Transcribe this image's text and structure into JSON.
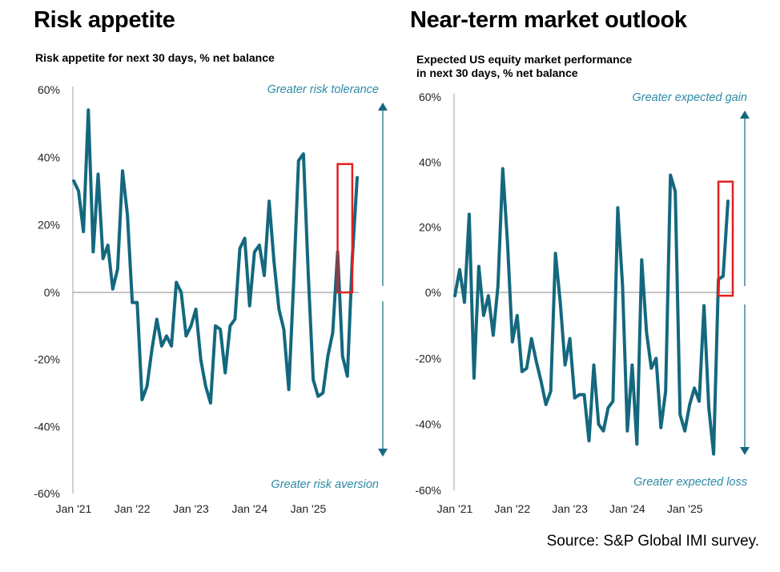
{
  "colors": {
    "series": "#14687e",
    "highlight": "#e02020",
    "axis": "#a0a0a0",
    "annotation": "#2d8aa6"
  },
  "left": {
    "title": "Risk appetite",
    "subtitle": "Risk appetite for next 30 days, % net balance"
  },
  "right": {
    "title": "Near-term market outlook",
    "subtitle_line1": "Expected US equity market performance",
    "subtitle_line2": "in next 30 days, % net balance"
  },
  "source": "Source: S&P Global IMI survey.",
  "chart_data": [
    {
      "type": "line",
      "title": "Risk appetite",
      "subtitle": "Risk appetite for next 30 days, % net balance",
      "ylim": [
        -60,
        60
      ],
      "yticks": [
        60,
        40,
        20,
        0,
        -20,
        -40,
        -60
      ],
      "ytick_labels": [
        "60%",
        "40%",
        "20%",
        "0%",
        "-20%",
        "-40%",
        "-60%"
      ],
      "x_start": "Jan '21",
      "xticks": [
        0,
        12,
        24,
        36,
        48
      ],
      "xtick_labels": [
        "Jan '21",
        "Jan '22",
        "Jan '23",
        "Jan '24",
        "Jan '25"
      ],
      "xlim": [
        0,
        58
      ],
      "annotations": {
        "top": "Greater risk tolerance",
        "bottom": "Greater risk aversion"
      },
      "highlight_range": [
        54,
        57
      ],
      "highlight_yrange": [
        0,
        38
      ],
      "series": [
        {
          "values": [
            33,
            30,
            18,
            54,
            12,
            35,
            10,
            14,
            1,
            7,
            36,
            23,
            -3,
            -3,
            -32,
            -28,
            -17,
            -8,
            -16,
            -13,
            -16,
            3,
            0,
            -13,
            -10,
            -5,
            -20,
            -28,
            -33,
            -10,
            -11,
            -24,
            -10,
            -8,
            13,
            16,
            -4,
            12,
            14,
            5,
            27,
            9,
            -5,
            -11,
            -29,
            3,
            39,
            41,
            5,
            -26,
            -31,
            -30,
            -19,
            -12,
            12,
            -19,
            -25,
            10,
            34
          ]
        }
      ]
    },
    {
      "type": "line",
      "title": "Near-term market outlook",
      "subtitle": "Expected US equity market performance in next 30 days, % net balance",
      "ylim": [
        -60,
        60
      ],
      "yticks": [
        60,
        40,
        20,
        0,
        -20,
        -40,
        -60
      ],
      "ytick_labels": [
        "60%",
        "40%",
        "20%",
        "0%",
        "-20%",
        "-40%",
        "-60%"
      ],
      "x_start": "Jan '21",
      "xticks": [
        0,
        12,
        24,
        36,
        48
      ],
      "xtick_labels": [
        "Jan '21",
        "Jan '22",
        "Jan '23",
        "Jan '24",
        "Jan '25"
      ],
      "xlim": [
        0,
        58
      ],
      "annotations": {
        "top": "Greater expected gain",
        "bottom": "Greater  expected loss"
      },
      "highlight_range": [
        55,
        58
      ],
      "highlight_yrange": [
        -1,
        34
      ],
      "series": [
        {
          "values": [
            -1,
            7,
            -3,
            24,
            -26,
            8,
            -7,
            -1,
            -13,
            2,
            38,
            15,
            -15,
            -7,
            -24,
            -23,
            -14,
            -21,
            -27,
            -34,
            -30,
            12,
            -3,
            -22,
            -14,
            -32,
            -31,
            -31,
            -45,
            -22,
            -40,
            -42,
            -35,
            -33,
            26,
            2,
            -42,
            -22,
            -46,
            10,
            -12,
            -23,
            -20,
            -41,
            -30,
            36,
            31,
            -37,
            -42,
            -34,
            -29,
            -33,
            -4,
            -35,
            -49,
            4,
            5,
            28
          ]
        }
      ]
    }
  ]
}
